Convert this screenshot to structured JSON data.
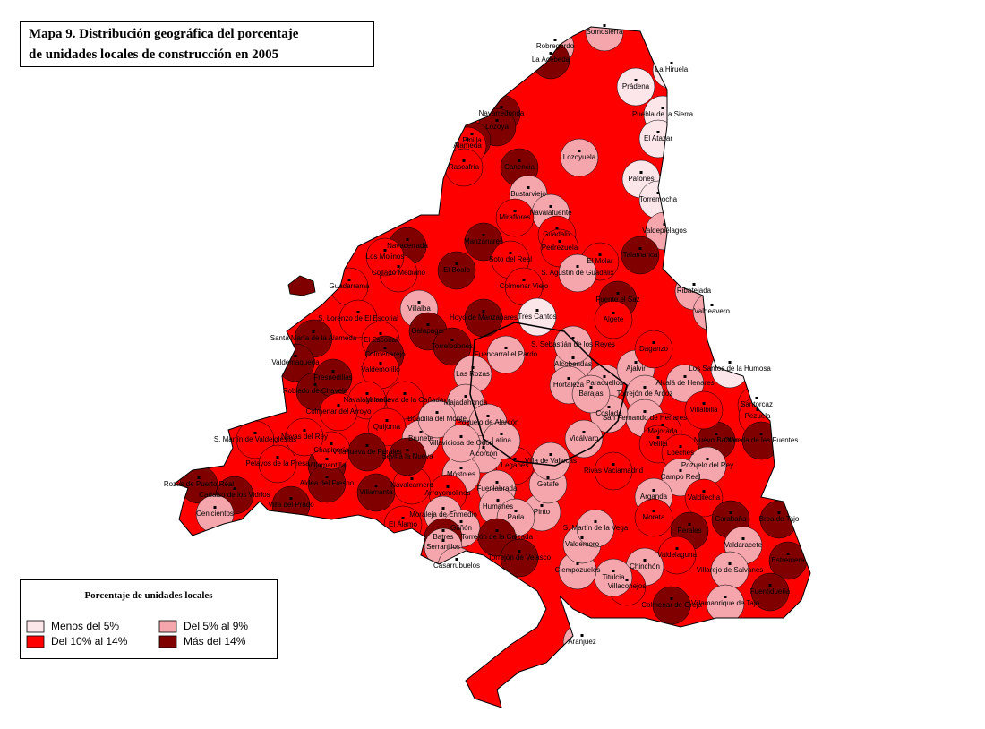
{
  "title": [
    "Mapa 9. Distribución geográfica del porcentaje",
    "de unidades locales de construcción en 2005"
  ],
  "legend": {
    "title": "Porcentaje de unidades locales",
    "items": [
      {
        "label": "Menos del 5%",
        "color": "#fde6ea"
      },
      {
        "label": "Del 5% al 9%",
        "color": "#f5a6ad"
      },
      {
        "label": "Del 10% al 14%",
        "color": "#ff0000"
      },
      {
        "label": "Más del 14%",
        "color": "#800000"
      }
    ]
  },
  "places": [
    {
      "name": "Somosierra",
      "class": 1
    },
    {
      "name": "Robregordo",
      "class": 1
    },
    {
      "name": "La Acebeda",
      "class": 3
    },
    {
      "name": "La Hiruela",
      "class": 0
    },
    {
      "name": "Prádena",
      "class": 0
    },
    {
      "name": "Puebla de la Sierra",
      "class": 0
    },
    {
      "name": "El Atazar",
      "class": 0
    },
    {
      "name": "Navarredonda",
      "class": 3
    },
    {
      "name": "Lozoya",
      "class": 3
    },
    {
      "name": "Pinilla",
      "class": 3
    },
    {
      "name": "Alameda",
      "class": 2
    },
    {
      "name": "Rascafría",
      "class": 2
    },
    {
      "name": "Canencia",
      "class": 3
    },
    {
      "name": "Lozoyuela",
      "class": 1
    },
    {
      "name": "Bustarviejo",
      "class": 1
    },
    {
      "name": "Patones",
      "class": 0
    },
    {
      "name": "Torremocha",
      "class": 0
    },
    {
      "name": "Navalafuente",
      "class": 1
    },
    {
      "name": "Miraflores",
      "class": 2
    },
    {
      "name": "Guadalix",
      "class": 2
    },
    {
      "name": "Pedrezuela",
      "class": 2
    },
    {
      "name": "Valdepiélagos",
      "class": 1
    },
    {
      "name": "Talamanca",
      "class": 3
    },
    {
      "name": "El Molar",
      "class": 2
    },
    {
      "name": "S. Agustín de Guadalix",
      "class": 1
    },
    {
      "name": "Fuente el Saz",
      "class": 3
    },
    {
      "name": "Ribatejada",
      "class": 1
    },
    {
      "name": "Valdeavero",
      "class": 1
    },
    {
      "name": "Algete",
      "class": 2
    },
    {
      "name": "Manzanares",
      "class": 3
    },
    {
      "name": "Soto del Real",
      "class": 2
    },
    {
      "name": "Colmenar Viejo",
      "class": 2
    },
    {
      "name": "Tres Cantos",
      "class": 0
    },
    {
      "name": "Hoyo de Manzanares",
      "class": 3
    },
    {
      "name": "El Boalo",
      "class": 3
    },
    {
      "name": "Navacerrada",
      "class": 3
    },
    {
      "name": "Collado Mediano",
      "class": 2
    },
    {
      "name": "Guadarrama",
      "class": 2
    },
    {
      "name": "Los Molinos",
      "class": 2
    },
    {
      "name": "Villalba",
      "class": 1
    },
    {
      "name": "Galapagar",
      "class": 3
    },
    {
      "name": "Torrelodones",
      "class": 3
    },
    {
      "name": "S. Lorenzo de El Escorial",
      "class": 2
    },
    {
      "name": "El Escorial",
      "class": 2
    },
    {
      "name": "Santa María de la Alameda",
      "class": 3
    },
    {
      "name": "Colmenarejo",
      "class": 3
    },
    {
      "name": "Valdemorillo",
      "class": 2
    },
    {
      "name": "Valdemaqueda",
      "class": 3
    },
    {
      "name": "Robledo de Chavela",
      "class": 3
    },
    {
      "name": "Fresnedillas",
      "class": 3
    },
    {
      "name": "Navalagamella",
      "class": 2
    },
    {
      "name": "Colmenar del Arroyo",
      "class": 2
    },
    {
      "name": "Villanueva de la Cañada",
      "class": 2
    },
    {
      "name": "Quijorna",
      "class": 2
    },
    {
      "name": "Brunete",
      "class": 1
    },
    {
      "name": "Las Rozas",
      "class": 1
    },
    {
      "name": "Majadahonda",
      "class": 1
    },
    {
      "name": "Boadilla del Monte",
      "class": 1
    },
    {
      "name": "Pozuelo de Alarcón",
      "class": 1
    },
    {
      "name": "Fuencarral el Pardo",
      "class": 1
    },
    {
      "name": "Alcobendas",
      "class": 1
    },
    {
      "name": "S. Sebastián de los Reyes",
      "class": 1
    },
    {
      "name": "Paracuellos",
      "class": 1
    },
    {
      "name": "Ajalvir",
      "class": 1
    },
    {
      "name": "Daganzo",
      "class": 2
    },
    {
      "name": "Alcalá de Henares",
      "class": 1
    },
    {
      "name": "Los Santos de la Humosa",
      "class": 0
    },
    {
      "name": "Santorcaz",
      "class": 2
    },
    {
      "name": "Pezuela",
      "class": 2
    },
    {
      "name": "Torrejón de Ardoz",
      "class": 1
    },
    {
      "name": "San Fernando de Henares",
      "class": 1
    },
    {
      "name": "Coslada",
      "class": 1
    },
    {
      "name": "Mejorada",
      "class": 2
    },
    {
      "name": "Velilla",
      "class": 2
    },
    {
      "name": "Loeches",
      "class": 2
    },
    {
      "name": "Nuevo Baztán",
      "class": 3
    },
    {
      "name": "Olmeda de las Fuentes",
      "class": 3
    },
    {
      "name": "Pozuelo del Rey",
      "class": 1
    },
    {
      "name": "Campo Real",
      "class": 1
    },
    {
      "name": "Arganda",
      "class": 1
    },
    {
      "name": "Rivas Vaciamadrid",
      "class": 2
    },
    {
      "name": "Villalbilla",
      "class": 2
    },
    {
      "name": "Valdilecha",
      "class": 2
    },
    {
      "name": "Carabaña",
      "class": 3
    },
    {
      "name": "Perales",
      "class": 3
    },
    {
      "name": "Morata",
      "class": 2
    },
    {
      "name": "Valdaracete",
      "class": 1
    },
    {
      "name": "Brea de Tajo",
      "class": 3
    },
    {
      "name": "Estremera",
      "class": 3
    },
    {
      "name": "Fuentidueña",
      "class": 3
    },
    {
      "name": "Villarejo de Salvanés",
      "class": 1
    },
    {
      "name": "Villamanrique de Tajo",
      "class": 1
    },
    {
      "name": "Colmenar de Oreja",
      "class": 3
    },
    {
      "name": "Valdelaguna",
      "class": 2
    },
    {
      "name": "Chinchón",
      "class": 1
    },
    {
      "name": "Villaconejos",
      "class": 2
    },
    {
      "name": "Titulcia",
      "class": 1
    },
    {
      "name": "Ciempozuelos",
      "class": 1
    },
    {
      "name": "Valdemoro",
      "class": 1
    },
    {
      "name": "S. Martín de la Vega",
      "class": 1
    },
    {
      "name": "Pinto",
      "class": 1
    },
    {
      "name": "Getafe",
      "class": 1
    },
    {
      "name": "Leganés",
      "class": 2
    },
    {
      "name": "Fuenlabrada",
      "class": 1
    },
    {
      "name": "Humanes",
      "class": 1
    },
    {
      "name": "Parla",
      "class": 1
    },
    {
      "name": "Alcorcón",
      "class": 1
    },
    {
      "name": "Móstoles",
      "class": 1
    },
    {
      "name": "Arroyomolinos",
      "class": 2
    },
    {
      "name": "Moraleja de Enmedio",
      "class": 1
    },
    {
      "name": "Navalcarnero",
      "class": 2
    },
    {
      "name": "Sevilla la Nueva",
      "class": 3
    },
    {
      "name": "Villaviciosa de Odón",
      "class": 1
    },
    {
      "name": "Griñón",
      "class": 1
    },
    {
      "name": "Batres",
      "class": 3
    },
    {
      "name": "Serranillos",
      "class": 1
    },
    {
      "name": "Casarrubuelos",
      "class": 1
    },
    {
      "name": "Torrejón de la Calzada",
      "class": 3
    },
    {
      "name": "Torrejón de Velasco",
      "class": 3
    },
    {
      "name": "El Álamo",
      "class": 2
    },
    {
      "name": "Villamanta",
      "class": 3
    },
    {
      "name": "Villamantilla",
      "class": 3
    },
    {
      "name": "Aldea del Fresno",
      "class": 3
    },
    {
      "name": "Villa del Prado",
      "class": 3
    },
    {
      "name": "Chapinería",
      "class": 2
    },
    {
      "name": "Navas del Rey",
      "class": 2
    },
    {
      "name": "S. Martín de Valdeiglesias",
      "class": 2
    },
    {
      "name": "Pelayos de la Presa",
      "class": 2
    },
    {
      "name": "Rozas de Puerto Real",
      "class": 3
    },
    {
      "name": "Cadalso de los Vidrios",
      "class": 3
    },
    {
      "name": "Cenicientos",
      "class": 1
    },
    {
      "name": "Villanueva de Perales",
      "class": 3
    },
    {
      "name": "Aranjuez",
      "class": 1
    },
    {
      "name": "Hortaleza",
      "class": 1
    },
    {
      "name": "Barajas",
      "class": 1
    },
    {
      "name": "Villa de Vallecas",
      "class": 1
    },
    {
      "name": "Vicálvaro",
      "class": 1
    },
    {
      "name": "Latina",
      "class": 1
    }
  ]
}
